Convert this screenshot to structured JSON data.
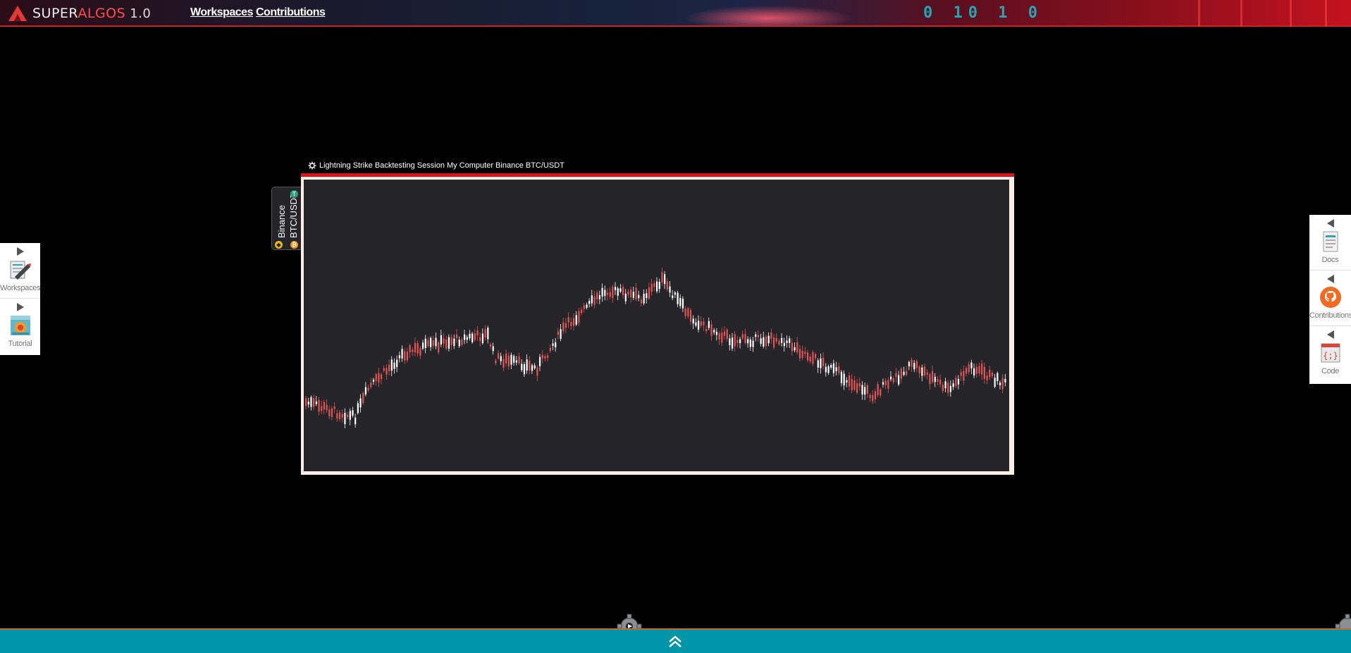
{
  "header": {
    "brand_left": "SUPER",
    "brand_right": "ALGOS",
    "version": "1.0",
    "nav": [
      {
        "label": "Workspaces"
      },
      {
        "label": "Contributions"
      }
    ],
    "decor_binary": "0 10 1 0"
  },
  "chart_window": {
    "title": "Lightning Strike Backtesting Session My Computer Binance BTC/USDT",
    "title_icon": "gear-icon",
    "market_tag": {
      "exchange": "Binance",
      "pair": "BTC/USDT"
    },
    "colors": {
      "frame_top": "#d8151b",
      "plot_bg": "#252429",
      "up_candle": "#ffffff",
      "down_candle": "#e05656"
    }
  },
  "left_panel": {
    "items": [
      {
        "label": "Workspaces",
        "icon": "workspaces-icon"
      },
      {
        "label": "Tutorial",
        "icon": "tutorial-icon"
      }
    ]
  },
  "right_panel": {
    "items": [
      {
        "label": "Docs",
        "icon": "docs-icon"
      },
      {
        "label": "Contributions",
        "icon": "github-icon"
      },
      {
        "label": "Code",
        "icon": "code-icon"
      }
    ]
  },
  "bottom_bar": {
    "color": "#0095a8",
    "expand_icon": "double-chevron-up-icon"
  }
}
